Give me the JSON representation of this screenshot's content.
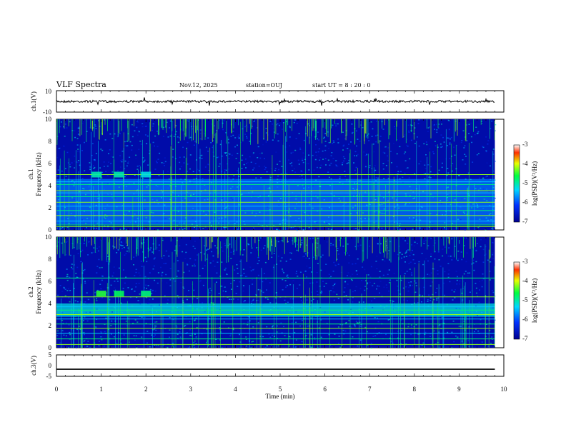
{
  "header": {
    "title": "VLF Spectra",
    "date": "Nov.12, 2025",
    "station": "station=OUJ",
    "start": "start  UT =   8 : 20 : 0"
  },
  "chart_data": [
    {
      "type": "line",
      "name": "ch1-waveform",
      "ylabel": "ch.1(V)",
      "ylim": [
        -10,
        10
      ],
      "y_ticks": [
        "10",
        "-10"
      ],
      "x": [
        0,
        1,
        2,
        3,
        4,
        5,
        6,
        7,
        8,
        9,
        9.8
      ],
      "values": [
        0,
        0,
        0,
        0,
        0,
        0,
        0,
        0,
        0,
        0,
        0
      ],
      "xlim": [
        0,
        10
      ]
    },
    {
      "type": "heatmap",
      "name": "ch1-spectrogram",
      "ylabel_line1": "ch.1",
      "ylabel_line2": "Frequency  (kHz)",
      "ylim": [
        0,
        10
      ],
      "y_ticks": [
        "0",
        "2",
        "4",
        "6",
        "8",
        "10"
      ],
      "xlim": [
        0,
        10
      ],
      "data_extent_min": 9.8,
      "colorbar": {
        "label": "log(PSD)(V²/Hz)",
        "range": [
          -7,
          -3
        ],
        "ticks": [
          "-3",
          "-4",
          "-5",
          "-6",
          "-7"
        ]
      },
      "tones_khz": [
        0.3,
        0.45,
        0.8,
        1.3,
        1.75,
        2.15,
        2.5,
        3.0,
        3.35,
        3.55,
        4.1,
        4.35,
        5.0
      ],
      "band": {
        "low_khz": 0.5,
        "high_khz": 4.6,
        "level": -5.8
      },
      "hiss_bursts": [
        {
          "t_min": 0.9,
          "f_khz": 5.0,
          "level": -5.0
        },
        {
          "t_min": 1.4,
          "f_khz": 5.0,
          "level": -5.0
        },
        {
          "t_min": 2.0,
          "f_khz": 5.0,
          "level": -5.2
        }
      ]
    },
    {
      "type": "heatmap",
      "name": "ch2-spectrogram",
      "ylabel_line1": "ch.2",
      "ylabel_line2": "Frequency  (kHz)",
      "ylim": [
        0,
        10
      ],
      "y_ticks": [
        "0",
        "2",
        "4",
        "6",
        "8",
        "10"
      ],
      "xlim": [
        0,
        10
      ],
      "data_extent_min": 9.8,
      "colorbar": {
        "label": "log(PSD)(V²/Hz)",
        "range": [
          -7,
          -3
        ],
        "ticks": [
          "-3",
          "-4",
          "-5",
          "-6",
          "-7"
        ]
      },
      "tones_khz": [
        0.3,
        0.8,
        1.3,
        1.75,
        2.15,
        2.6,
        3.0,
        3.4,
        3.7,
        4.6,
        6.3
      ],
      "band": {
        "low_khz": 2.8,
        "high_khz": 4.0,
        "level": -5.2
      },
      "hiss_bursts": [
        {
          "t_min": 1.0,
          "f_khz": 4.9,
          "level": -4.5
        },
        {
          "t_min": 1.4,
          "f_khz": 4.9,
          "level": -4.7
        },
        {
          "t_min": 2.0,
          "f_khz": 4.9,
          "level": -4.8
        }
      ]
    },
    {
      "type": "line",
      "name": "ch3-waveform",
      "ylabel": "ch.3(V)",
      "ylim": [
        -5,
        5
      ],
      "y_ticks": [
        "5",
        "0",
        "-5"
      ],
      "x": [
        0,
        9.8
      ],
      "values": [
        -1.7,
        -1.7
      ],
      "xlim": [
        0,
        10
      ],
      "x_ticks": [
        "0",
        "1",
        "2",
        "3",
        "4",
        "5",
        "6",
        "7",
        "8",
        "9",
        "10"
      ],
      "xlabel": "Time  (min)"
    }
  ]
}
